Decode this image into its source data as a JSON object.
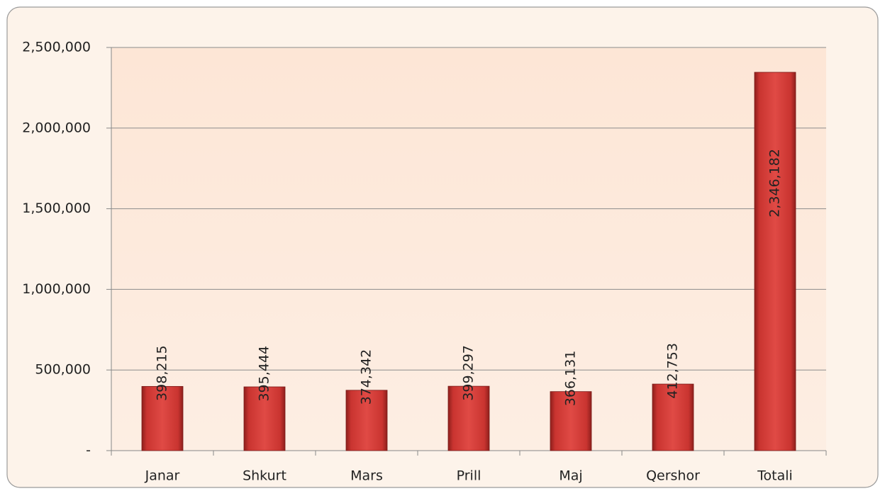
{
  "chart_data": {
    "type": "bar",
    "categories": [
      "Janar",
      "Shkurt",
      "Mars",
      "Prill",
      "Maj",
      "Qershor",
      "Totali"
    ],
    "values": [
      398215,
      395444,
      374342,
      399297,
      366131,
      412753,
      2346182
    ],
    "value_labels": [
      "398,215",
      "395,444",
      "374,342",
      "399,297",
      "366,131",
      "412,753",
      "2,346,182"
    ],
    "color": "#d9403c",
    "ylim": [
      0,
      2500000
    ],
    "yticks": [
      {
        "value": 0,
        "label": "-"
      },
      {
        "value": 500000,
        "label": "500,000"
      },
      {
        "value": 1000000,
        "label": "1,000,000"
      },
      {
        "value": 1500000,
        "label": "1,500,000"
      },
      {
        "value": 2000000,
        "label": "2,000,000"
      },
      {
        "value": 2500000,
        "label": "2,500,000"
      }
    ],
    "grid": true
  }
}
